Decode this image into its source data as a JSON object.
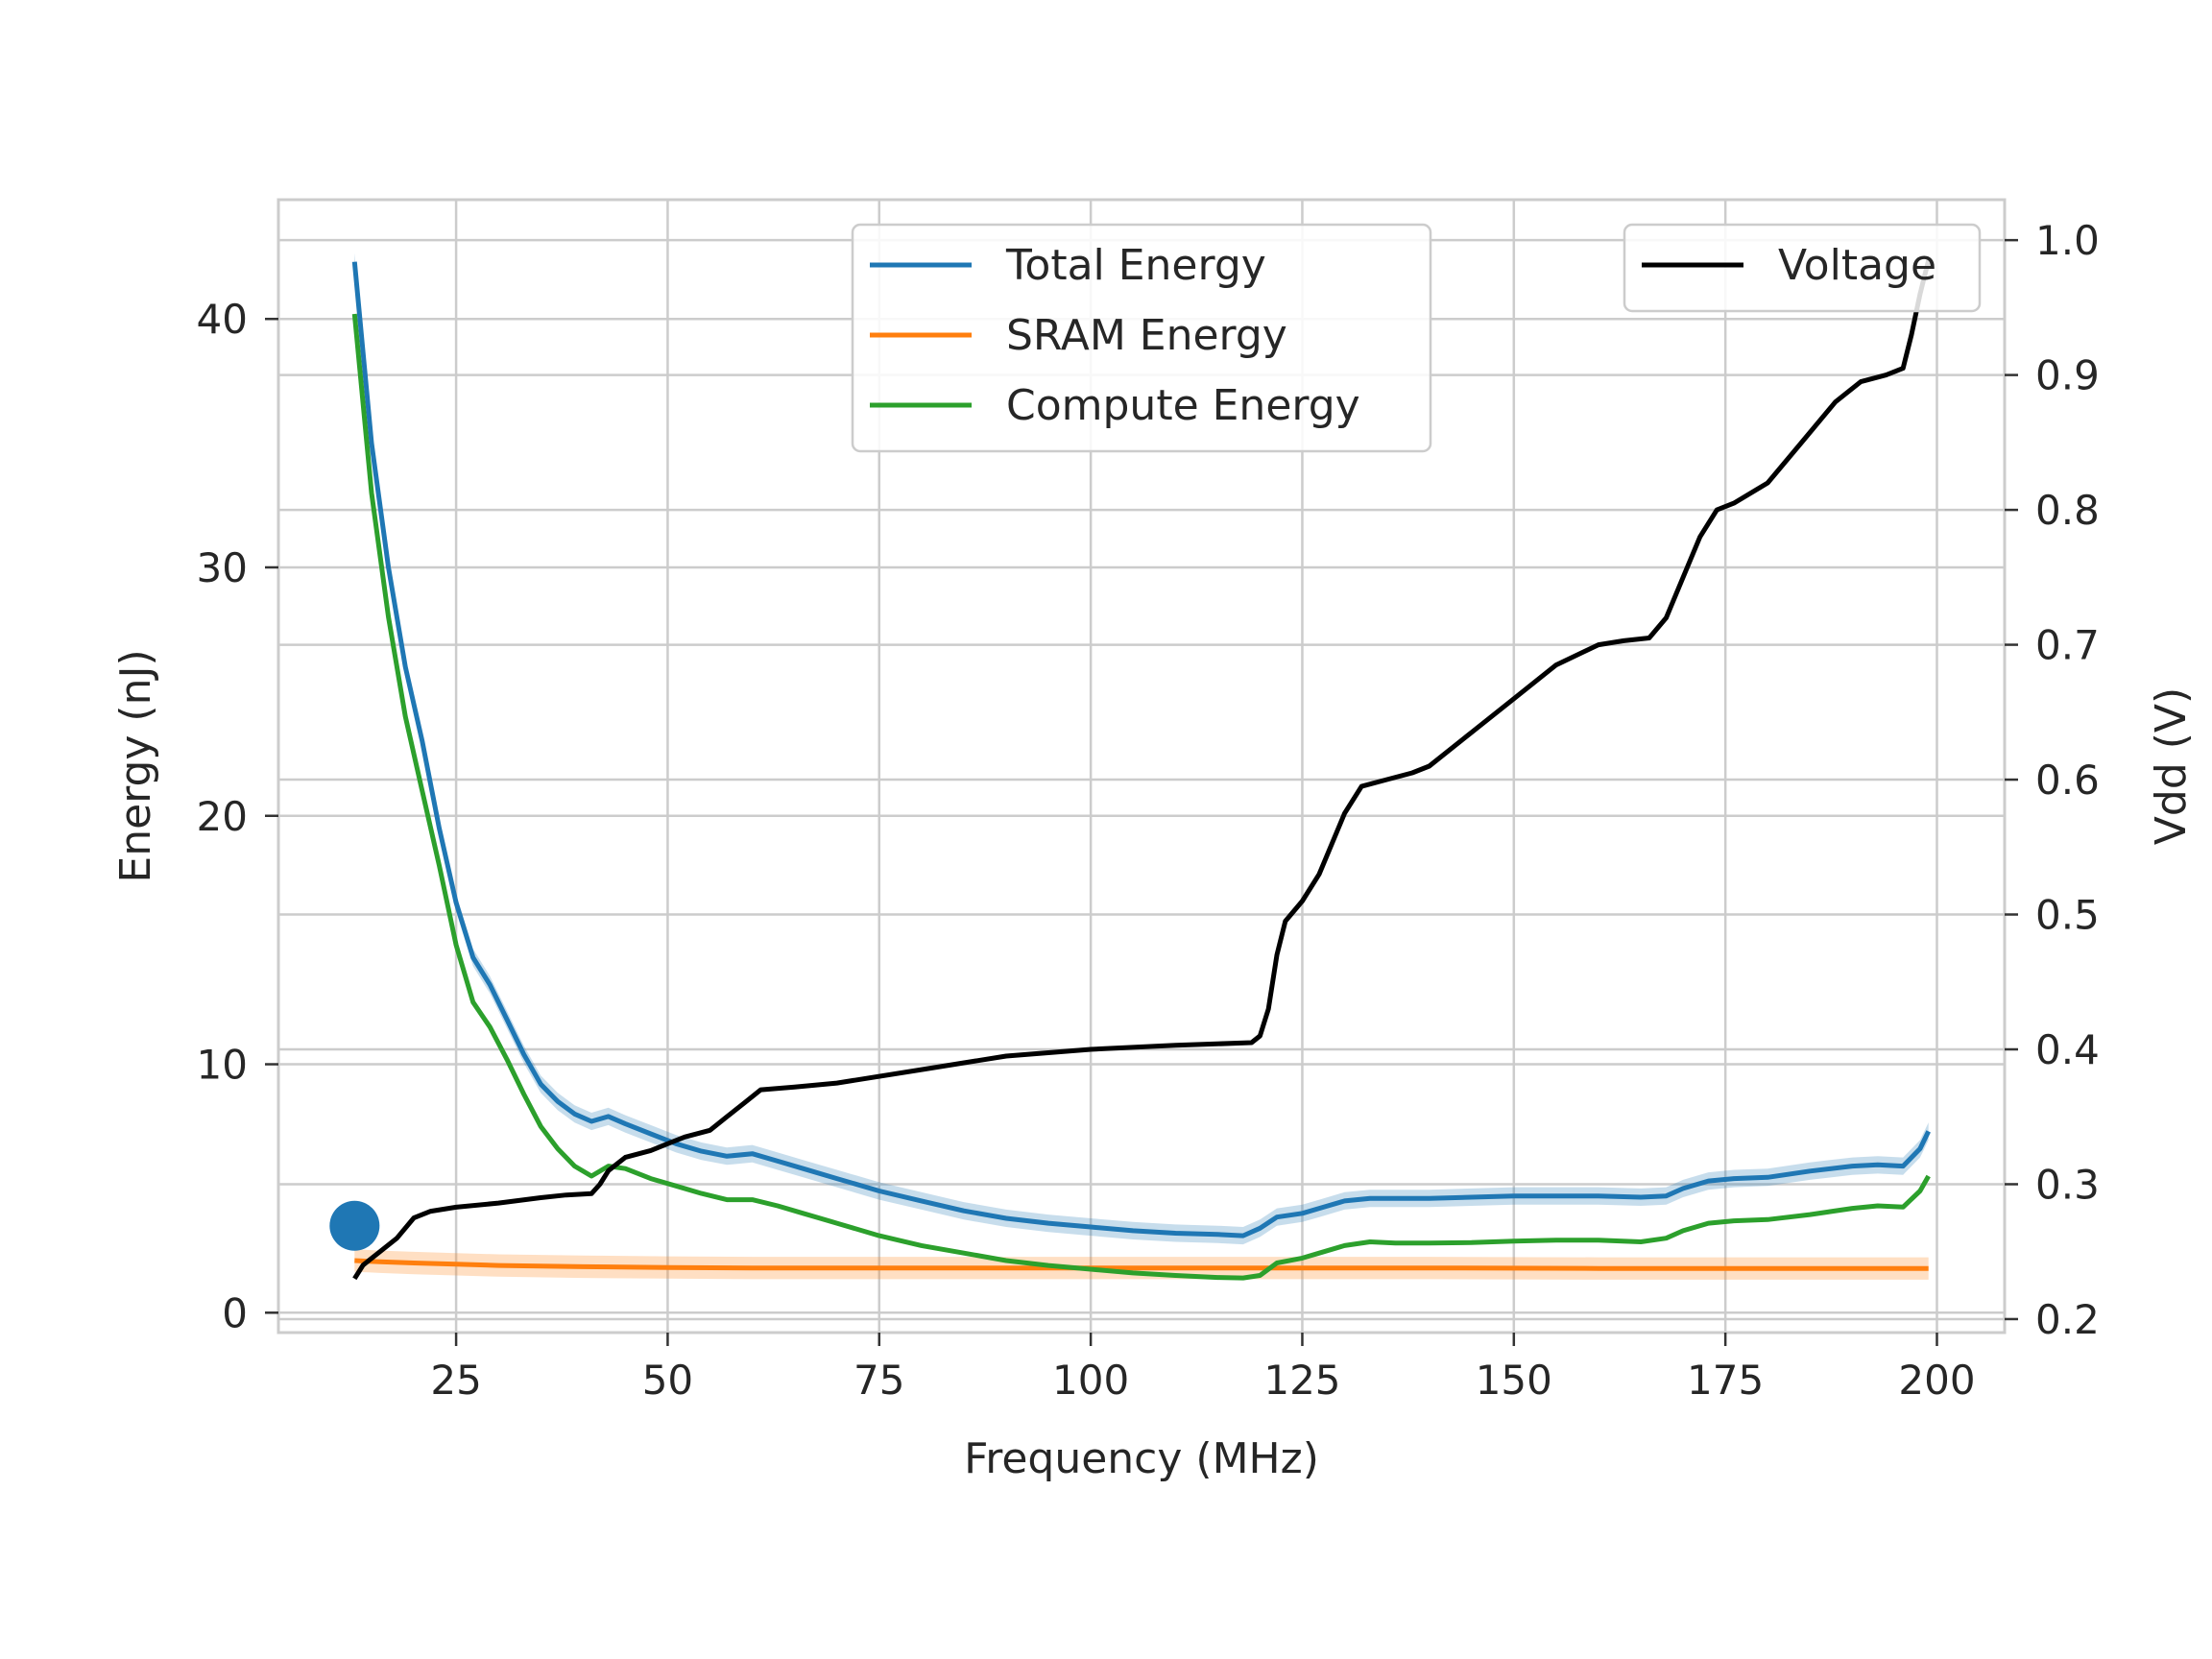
{
  "chart_data": {
    "type": "line",
    "xlabel": "Frequency (MHz)",
    "ylabel": "Energy (nJ)",
    "y2label": "Vdd (V)",
    "xlim": [
      4,
      208
    ],
    "ylim": [
      -0.8,
      44.8
    ],
    "y2lim": [
      0.19,
      1.03
    ],
    "xticks": [
      25,
      50,
      75,
      100,
      125,
      150,
      175,
      200
    ],
    "yticks": [
      0,
      10,
      20,
      30,
      40
    ],
    "y2ticks": [
      0.2,
      0.3,
      0.4,
      0.5,
      0.6,
      0.7,
      0.8,
      0.9,
      1.0
    ],
    "y2tick_labels": [
      "0.2",
      "0.3",
      "0.4",
      "0.5",
      "0.6",
      "0.7",
      "0.8",
      "0.9",
      "1.0"
    ],
    "grid": true,
    "legend_left": {
      "placement": "upper-center",
      "entries": [
        "Total Energy",
        "SRAM Energy",
        "Compute Energy"
      ]
    },
    "legend_right": {
      "placement": "upper-right",
      "entries": [
        "Voltage"
      ]
    },
    "marker": {
      "x": 13,
      "y": 3.5,
      "color": "#1f77b4"
    },
    "series": [
      {
        "name": "Total Energy",
        "axis": "left",
        "color": "#1f77b4",
        "band": 0.35,
        "x": [
          13,
          15,
          17,
          19,
          21,
          23,
          25,
          27,
          29,
          31,
          33,
          35,
          37,
          39,
          41,
          43,
          45,
          48,
          51,
          54,
          57,
          60,
          63,
          66,
          70,
          75,
          80,
          85,
          90,
          95,
          100,
          105,
          110,
          115,
          118,
          120,
          122,
          125,
          127,
          130,
          133,
          136,
          140,
          145,
          150,
          155,
          160,
          165,
          168,
          170,
          173,
          176,
          180,
          185,
          190,
          193,
          196,
          198,
          199
        ],
        "y": [
          42.3,
          35,
          30,
          26,
          23,
          19.5,
          16.5,
          14.3,
          13.2,
          11.8,
          10.4,
          9.2,
          8.5,
          8,
          7.7,
          7.9,
          7.6,
          7.2,
          6.8,
          6.5,
          6.3,
          6.4,
          6.1,
          5.8,
          5.4,
          4.9,
          4.5,
          4.1,
          3.8,
          3.6,
          3.45,
          3.3,
          3.2,
          3.15,
          3.1,
          3.4,
          3.85,
          4.0,
          4.2,
          4.5,
          4.6,
          4.6,
          4.6,
          4.65,
          4.7,
          4.7,
          4.7,
          4.65,
          4.7,
          5.0,
          5.3,
          5.4,
          5.45,
          5.7,
          5.9,
          5.95,
          5.9,
          6.6,
          7.3
        ]
      },
      {
        "name": "SRAM Energy",
        "axis": "left",
        "color": "#ff7f0e",
        "band": 0.45,
        "x": [
          13,
          16,
          20,
          25,
          30,
          40,
          50,
          60,
          80,
          100,
          120,
          140,
          160,
          180,
          199
        ],
        "y": [
          2.1,
          2.05,
          2.0,
          1.95,
          1.9,
          1.85,
          1.82,
          1.8,
          1.8,
          1.8,
          1.8,
          1.8,
          1.78,
          1.78,
          1.78
        ]
      },
      {
        "name": "Compute Energy",
        "axis": "left",
        "color": "#2ca02c",
        "band": 0,
        "x": [
          13,
          15,
          17,
          19,
          21,
          23,
          25,
          27,
          29,
          31,
          33,
          35,
          37,
          39,
          41,
          43,
          45,
          48,
          51,
          54,
          57,
          60,
          63,
          66,
          70,
          75,
          80,
          85,
          90,
          95,
          100,
          105,
          110,
          115,
          118,
          120,
          122,
          125,
          127,
          130,
          133,
          136,
          140,
          145,
          150,
          155,
          160,
          165,
          168,
          170,
          173,
          176,
          180,
          185,
          190,
          193,
          196,
          198,
          199
        ],
        "y": [
          40.2,
          33,
          28,
          24,
          21,
          18,
          14.8,
          12.5,
          11.5,
          10.2,
          8.8,
          7.5,
          6.6,
          5.9,
          5.5,
          5.9,
          5.8,
          5.4,
          5.1,
          4.8,
          4.55,
          4.55,
          4.3,
          4.0,
          3.6,
          3.1,
          2.7,
          2.4,
          2.1,
          1.9,
          1.75,
          1.6,
          1.5,
          1.42,
          1.4,
          1.5,
          2.0,
          2.2,
          2.4,
          2.7,
          2.85,
          2.8,
          2.8,
          2.82,
          2.88,
          2.92,
          2.92,
          2.85,
          3.0,
          3.3,
          3.6,
          3.7,
          3.75,
          3.95,
          4.2,
          4.3,
          4.25,
          4.9,
          5.5
        ]
      },
      {
        "name": "Voltage",
        "axis": "right",
        "color": "#000000",
        "band": 0,
        "x": [
          13,
          14,
          16,
          18,
          20,
          22,
          25,
          30,
          35,
          38,
          41,
          42,
          43,
          45,
          48,
          50,
          52,
          55,
          57,
          59,
          61,
          65,
          70,
          80,
          90,
          100,
          110,
          119,
          120,
          121,
          122,
          123,
          125,
          127,
          130,
          132,
          135,
          138,
          140,
          143,
          145,
          150,
          155,
          160,
          163,
          166,
          168,
          170,
          172,
          174,
          176,
          180,
          184,
          188,
          191,
          194,
          196,
          197,
          198,
          199
        ],
        "y": [
          0.23,
          0.24,
          0.25,
          0.26,
          0.275,
          0.28,
          0.283,
          0.286,
          0.29,
          0.292,
          0.293,
          0.3,
          0.31,
          0.32,
          0.325,
          0.33,
          0.335,
          0.34,
          0.35,
          0.36,
          0.37,
          0.372,
          0.375,
          0.385,
          0.395,
          0.4,
          0.403,
          0.405,
          0.41,
          0.43,
          0.47,
          0.495,
          0.51,
          0.53,
          0.575,
          0.595,
          0.6,
          0.605,
          0.61,
          0.625,
          0.635,
          0.66,
          0.685,
          0.7,
          0.703,
          0.705,
          0.72,
          0.75,
          0.78,
          0.8,
          0.805,
          0.82,
          0.85,
          0.88,
          0.895,
          0.9,
          0.905,
          0.93,
          0.96,
          0.985
        ]
      }
    ]
  }
}
